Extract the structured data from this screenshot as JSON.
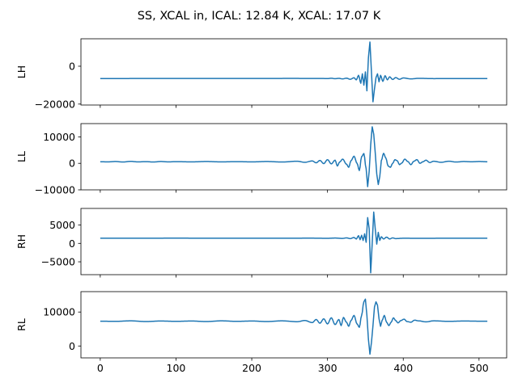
{
  "title": "SS, XCAL in, ICAL: 12.84 K, XCAL: 17.07 K",
  "line_color": "#1f77b4",
  "chart_data": [
    {
      "type": "line",
      "ylabel": "LH",
      "xlim": [
        -25.5,
        536.5
      ],
      "ylim": [
        -20500,
        14500
      ],
      "yticks": [
        0,
        -20000
      ],
      "ytick_labels": [
        "0",
        "−20000"
      ],
      "xticks": [
        0,
        100,
        200,
        300,
        400,
        500
      ],
      "xtick_labels": [],
      "series": [
        {
          "baseline": -6500,
          "points": [
            [
              0,
              -6500
            ],
            [
              100,
              -6480
            ],
            [
              200,
              -6470
            ],
            [
              250,
              -6440
            ],
            [
              290,
              -6450
            ],
            [
              300,
              -6520
            ],
            [
              305,
              -6350
            ],
            [
              310,
              -6600
            ],
            [
              315,
              -6400
            ],
            [
              320,
              -6700
            ],
            [
              325,
              -6300
            ],
            [
              330,
              -6900
            ],
            [
              335,
              -6100
            ],
            [
              338,
              -7200
            ],
            [
              341,
              -4800
            ],
            [
              344,
              -9000
            ],
            [
              346,
              -4000
            ],
            [
              348,
              -10000
            ],
            [
              350,
              -3000
            ],
            [
              352,
              -13000
            ],
            [
              354,
              4500
            ],
            [
              356,
              12800
            ],
            [
              358,
              -3000
            ],
            [
              360,
              -18800
            ],
            [
              362,
              -12000
            ],
            [
              364,
              -6000
            ],
            [
              366,
              -4000
            ],
            [
              368,
              -8200
            ],
            [
              370,
              -4800
            ],
            [
              373,
              -8000
            ],
            [
              376,
              -5000
            ],
            [
              379,
              -7200
            ],
            [
              382,
              -5600
            ],
            [
              386,
              -7000
            ],
            [
              390,
              -6000
            ],
            [
              395,
              -6900
            ],
            [
              400,
              -6200
            ],
            [
              410,
              -6700
            ],
            [
              420,
              -6400
            ],
            [
              440,
              -6550
            ],
            [
              470,
              -6500
            ],
            [
              511,
              -6500
            ]
          ]
        }
      ]
    },
    {
      "type": "line",
      "ylabel": "LL",
      "xlim": [
        -25.5,
        536.5
      ],
      "ylim": [
        -10000,
        15000
      ],
      "yticks": [
        10000,
        0,
        -10000
      ],
      "ytick_labels": [
        "10000",
        "0",
        "−10000"
      ],
      "xticks": [
        0,
        100,
        200,
        300,
        400,
        500
      ],
      "xtick_labels": [],
      "series": [
        {
          "baseline": 600,
          "points": [
            [
              0,
              600
            ],
            [
              10,
              550
            ],
            [
              20,
              700
            ],
            [
              30,
              500
            ],
            [
              40,
              750
            ],
            [
              50,
              550
            ],
            [
              60,
              650
            ],
            [
              70,
              500
            ],
            [
              80,
              700
            ],
            [
              90,
              550
            ],
            [
              100,
              650
            ],
            [
              120,
              550
            ],
            [
              140,
              700
            ],
            [
              160,
              550
            ],
            [
              180,
              650
            ],
            [
              200,
              550
            ],
            [
              220,
              700
            ],
            [
              240,
              500
            ],
            [
              260,
              800
            ],
            [
              270,
              400
            ],
            [
              280,
              900
            ],
            [
              285,
              200
            ],
            [
              290,
              1100
            ],
            [
              295,
              -100
            ],
            [
              300,
              1400
            ],
            [
              305,
              -200
            ],
            [
              310,
              1200
            ],
            [
              313,
              -1000
            ],
            [
              316,
              500
            ],
            [
              320,
              1600
            ],
            [
              325,
              -300
            ],
            [
              328,
              -1500
            ],
            [
              331,
              1000
            ],
            [
              335,
              2700
            ],
            [
              339,
              0
            ],
            [
              342,
              -2700
            ],
            [
              345,
              2500
            ],
            [
              348,
              3700
            ],
            [
              351,
              -2000
            ],
            [
              353,
              -8800
            ],
            [
              355,
              -3000
            ],
            [
              357,
              7000
            ],
            [
              359,
              13800
            ],
            [
              361,
              11000
            ],
            [
              363,
              4000
            ],
            [
              365,
              -4000
            ],
            [
              367,
              -8000
            ],
            [
              369,
              -5000
            ],
            [
              371,
              1000
            ],
            [
              374,
              3800
            ],
            [
              377,
              2000
            ],
            [
              380,
              -1000
            ],
            [
              383,
              -1500
            ],
            [
              386,
              0
            ],
            [
              389,
              1400
            ],
            [
              392,
              1000
            ],
            [
              395,
              -500
            ],
            [
              398,
              100
            ],
            [
              402,
              1600
            ],
            [
              406,
              700
            ],
            [
              410,
              -500
            ],
            [
              414,
              800
            ],
            [
              418,
              1400
            ],
            [
              422,
              0
            ],
            [
              426,
              600
            ],
            [
              430,
              1200
            ],
            [
              435,
              300
            ],
            [
              440,
              800
            ],
            [
              450,
              400
            ],
            [
              460,
              800
            ],
            [
              470,
              500
            ],
            [
              480,
              700
            ],
            [
              490,
              600
            ],
            [
              500,
              700
            ],
            [
              511,
              600
            ]
          ]
        }
      ]
    },
    {
      "type": "line",
      "ylabel": "RH",
      "xlim": [
        -25.5,
        536.5
      ],
      "ylim": [
        -8500,
        9500
      ],
      "yticks": [
        5000,
        0,
        -5000
      ],
      "ytick_labels": [
        "5000",
        "0",
        "−5000"
      ],
      "xticks": [
        0,
        100,
        200,
        300,
        400,
        500
      ],
      "xtick_labels": [],
      "series": [
        {
          "baseline": 1400,
          "points": [
            [
              0,
              1400
            ],
            [
              100,
              1420
            ],
            [
              200,
              1400
            ],
            [
              280,
              1420
            ],
            [
              300,
              1380
            ],
            [
              310,
              1450
            ],
            [
              320,
              1350
            ],
            [
              325,
              1500
            ],
            [
              330,
              1300
            ],
            [
              335,
              1600
            ],
            [
              338,
              1200
            ],
            [
              341,
              2100
            ],
            [
              343,
              1000
            ],
            [
              345,
              2200
            ],
            [
              347,
              800
            ],
            [
              349,
              2600
            ],
            [
              351,
              300
            ],
            [
              353,
              7000
            ],
            [
              355,
              4000
            ],
            [
              357,
              -8000
            ],
            [
              359,
              0
            ],
            [
              361,
              8500
            ],
            [
              363,
              4000
            ],
            [
              365,
              -200
            ],
            [
              367,
              3000
            ],
            [
              369,
              800
            ],
            [
              371,
              1800
            ],
            [
              374,
              1200
            ],
            [
              378,
              1700
            ],
            [
              382,
              1200
            ],
            [
              386,
              1500
            ],
            [
              390,
              1300
            ],
            [
              400,
              1400
            ],
            [
              420,
              1380
            ],
            [
              460,
              1400
            ],
            [
              511,
              1400
            ]
          ]
        }
      ]
    },
    {
      "type": "line",
      "ylabel": "RL",
      "xlim": [
        -25.5,
        536.5
      ],
      "ylim": [
        -3500,
        16000
      ],
      "yticks": [
        10000,
        0
      ],
      "ytick_labels": [
        "10000",
        "0"
      ],
      "xticks": [
        0,
        100,
        200,
        300,
        400,
        500
      ],
      "xtick_labels": [
        "0",
        "100",
        "200",
        "300",
        "400",
        "500"
      ],
      "series": [
        {
          "baseline": 7300,
          "points": [
            [
              0,
              7300
            ],
            [
              20,
              7250
            ],
            [
              40,
              7400
            ],
            [
              60,
              7200
            ],
            [
              80,
              7350
            ],
            [
              100,
              7250
            ],
            [
              120,
              7350
            ],
            [
              140,
              7200
            ],
            [
              160,
              7400
            ],
            [
              180,
              7250
            ],
            [
              200,
              7350
            ],
            [
              220,
              7200
            ],
            [
              240,
              7400
            ],
            [
              260,
              7150
            ],
            [
              270,
              7500
            ],
            [
              280,
              6900
            ],
            [
              285,
              7800
            ],
            [
              290,
              6700
            ],
            [
              295,
              8000
            ],
            [
              300,
              6500
            ],
            [
              305,
              8300
            ],
            [
              310,
              6300
            ],
            [
              315,
              7800
            ],
            [
              318,
              6000
            ],
            [
              321,
              8400
            ],
            [
              325,
              7000
            ],
            [
              328,
              5800
            ],
            [
              331,
              7500
            ],
            [
              335,
              9000
            ],
            [
              339,
              6500
            ],
            [
              342,
              5500
            ],
            [
              345,
              9000
            ],
            [
              348,
              13000
            ],
            [
              350,
              13800
            ],
            [
              352,
              9000
            ],
            [
              354,
              2000
            ],
            [
              356,
              -2400
            ],
            [
              358,
              1000
            ],
            [
              360,
              6000
            ],
            [
              362,
              11500
            ],
            [
              364,
              13000
            ],
            [
              366,
              12000
            ],
            [
              368,
              8000
            ],
            [
              370,
              5800
            ],
            [
              372,
              7500
            ],
            [
              375,
              9000
            ],
            [
              378,
              7000
            ],
            [
              381,
              6000
            ],
            [
              384,
              7000
            ],
            [
              387,
              8300
            ],
            [
              390,
              7500
            ],
            [
              393,
              6800
            ],
            [
              397,
              7500
            ],
            [
              401,
              7900
            ],
            [
              405,
              7200
            ],
            [
              410,
              7000
            ],
            [
              415,
              7600
            ],
            [
              420,
              7400
            ],
            [
              430,
              7100
            ],
            [
              440,
              7400
            ],
            [
              460,
              7250
            ],
            [
              480,
              7350
            ],
            [
              500,
              7300
            ],
            [
              511,
              7300
            ]
          ]
        }
      ]
    }
  ]
}
